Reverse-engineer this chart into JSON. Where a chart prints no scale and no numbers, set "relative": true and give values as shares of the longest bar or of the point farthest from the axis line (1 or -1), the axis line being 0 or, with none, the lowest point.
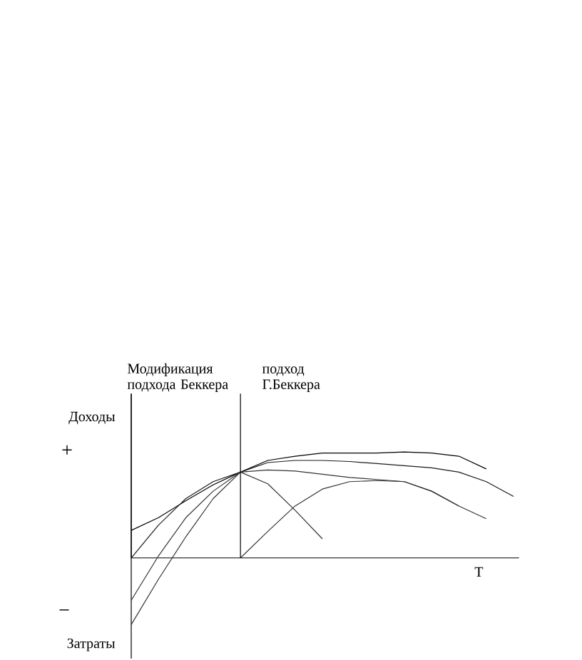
{
  "chart_data": {
    "type": "line",
    "relative": true,
    "marker": "none",
    "xlabel": "T",
    "categories": [
      null,
      null,
      null,
      null,
      null,
      null,
      null,
      null,
      null,
      null,
      null,
      null,
      null,
      null,
      null
    ],
    "series": [
      {
        "color": "#000000",
        "values": [
          0.26,
          0.38,
          0.54,
          0.69,
          0.81,
          0.92,
          0.96,
          0.99,
          0.99,
          0.99,
          1.0,
          0.99,
          0.96,
          0.84,
          null
        ]
      },
      {
        "color": "#1a1a1a",
        "values": [
          0,
          0.31,
          0.56,
          0.72,
          0.81,
          0.9,
          0.92,
          0.92,
          0.91,
          0.89,
          0.87,
          0.85,
          0.81,
          0.72,
          0.58
        ]
      },
      {
        "color": "#333333",
        "values": [
          -0.4,
          0.02,
          0.38,
          0.63,
          0.81,
          0.83,
          0.82,
          0.79,
          0.76,
          0.74,
          0.72,
          0.63,
          0.49,
          0.37,
          null
        ]
      },
      {
        "color": "#333333",
        "values": [
          -0.63,
          -0.2,
          0.2,
          0.56,
          0.81,
          0.7,
          0.45,
          0.18,
          null,
          null,
          null,
          null,
          null,
          null,
          null
        ]
      },
      {
        "color": "#333333",
        "values": [
          null,
          null,
          null,
          null,
          0,
          0.25,
          0.49,
          0.65,
          0.72,
          0.73,
          0.72,
          0.63,
          0.49,
          null,
          null
        ]
      }
    ],
    "annotations": [
      "Доходы",
      "+",
      "−",
      "Затраты",
      "Модификация подхода Беккера",
      "подход Г.Беккера"
    ]
  }
}
